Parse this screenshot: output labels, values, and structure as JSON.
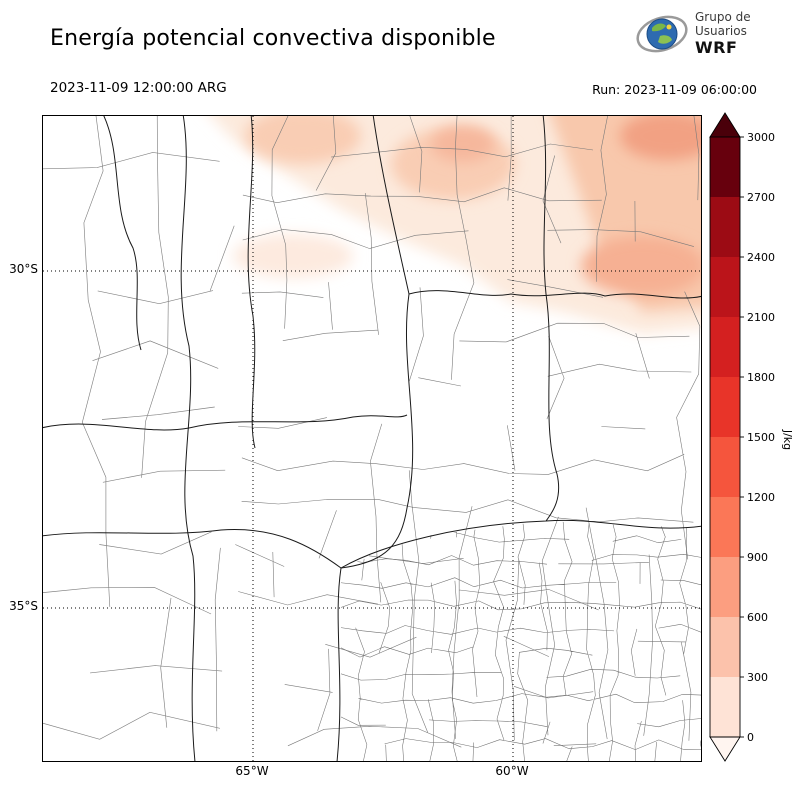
{
  "header": {
    "title": "Energía potencial convectiva disponible",
    "valid_time": "2023-11-09 12:00:00 ARG",
    "run_label": "Run: 2023-11-09 06:00:00",
    "logo": {
      "line1": "Grupo de",
      "line2": "Usuarios",
      "line3": "WRF"
    }
  },
  "map": {
    "yticks": {
      "y30": "30°S",
      "y35": "35°S"
    },
    "xticks": {
      "x65": "65°W",
      "x60": "60°W"
    }
  },
  "colorbar": {
    "unit": "J/kg",
    "ticks": [
      "3000",
      "2700",
      "2400",
      "2100",
      "1800",
      "1500",
      "1200",
      "900",
      "600",
      "300",
      "0"
    ],
    "colors": [
      "#67000d",
      "#9c0b14",
      "#bb141a",
      "#d42020",
      "#e83429",
      "#f5553d",
      "#fb7757",
      "#fc9e80",
      "#fcc2ab",
      "#fee3d6"
    ],
    "over_color": "#4a000a",
    "under_color": "#fff5f0"
  }
}
